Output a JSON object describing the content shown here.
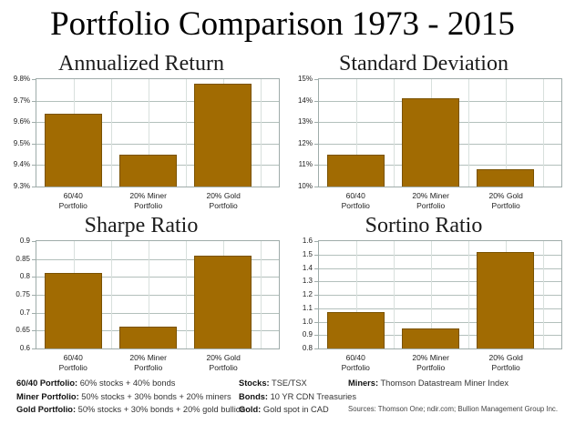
{
  "page_title": "Portfolio Comparison 1973 - 2015",
  "colors": {
    "bar_fill": "#A16B02",
    "bar_border": "#7A5200",
    "plot_border": "#9FACAA",
    "hgrid": "#B3C0BC",
    "vgrid": "#D8E0DD"
  },
  "chart_data": [
    {
      "type": "bar",
      "title": "Annualized Return",
      "categories": [
        "60/40\nPortfolio",
        "20% Miner\nPortfolio",
        "20% Gold\nPortfolio"
      ],
      "values": [
        9.64,
        9.45,
        9.78
      ],
      "ylim": [
        9.3,
        9.8
      ],
      "yticks": [
        9.3,
        9.4,
        9.5,
        9.6,
        9.7,
        9.8
      ],
      "ytick_labels": [
        "9.3%",
        "9.4%",
        "9.5%",
        "9.6%",
        "9.7%",
        "9.8%"
      ],
      "grid": true,
      "legend": false
    },
    {
      "type": "bar",
      "title": "Standard Deviation",
      "categories": [
        "60/40\nPortfolio",
        "20% Miner\nPortfolio",
        "20% Gold\nPortfolio"
      ],
      "values": [
        11.5,
        14.1,
        10.8
      ],
      "ylim": [
        10,
        15
      ],
      "yticks": [
        10,
        11,
        12,
        13,
        14,
        15
      ],
      "ytick_labels": [
        "10%",
        "11%",
        "12%",
        "13%",
        "14%",
        "15%"
      ],
      "grid": true,
      "legend": false
    },
    {
      "type": "bar",
      "title": "Sharpe Ratio",
      "categories": [
        "60/40\nPortfolio",
        "20% Miner\nPortfolio",
        "20% Gold\nPortfolio"
      ],
      "values": [
        0.81,
        0.66,
        0.86
      ],
      "ylim": [
        0.6,
        0.9
      ],
      "yticks": [
        0.6,
        0.65,
        0.7,
        0.75,
        0.8,
        0.85,
        0.9
      ],
      "ytick_labels": [
        "0.6",
        "0.65",
        "0.7",
        "0.75",
        "0.8",
        "0.85",
        "0.9"
      ],
      "grid": true,
      "legend": false
    },
    {
      "type": "bar",
      "title": "Sortino Ratio",
      "categories": [
        "60/40\nPortfolio",
        "20% Miner\nPortfolio",
        "20% Gold\nPortfolio"
      ],
      "values": [
        1.07,
        0.95,
        1.52
      ],
      "ylim": [
        0.8,
        1.6
      ],
      "yticks": [
        0.8,
        0.9,
        1.0,
        1.1,
        1.2,
        1.3,
        1.4,
        1.5,
        1.6
      ],
      "ytick_labels": [
        "0.8",
        "0.9",
        "1.0",
        "1.1",
        "1.2",
        "1.3",
        "1.4",
        "1.5",
        "1.6"
      ],
      "grid": true,
      "legend": false
    }
  ],
  "footer": {
    "col1": [
      {
        "label": "60/40 Portfolio:",
        "text": " 60% stocks + 40% bonds"
      },
      {
        "label": "Miner Portfolio:",
        "text": " 50% stocks + 30% bonds + 20% miners"
      },
      {
        "label": "Gold Portfolio:",
        "text": " 50% stocks + 30% bonds + 20% gold bullion"
      }
    ],
    "col2": [
      {
        "label": "Stocks:",
        "text": " TSE/TSX"
      },
      {
        "label": "Bonds:",
        "text": " 10 YR CDN Treasuries"
      },
      {
        "label": "Gold:",
        "text": " Gold spot in CAD"
      }
    ],
    "col3": [
      {
        "label": "Miners:",
        "text": " Thomson Datastream Miner Index"
      }
    ],
    "sources": "Sources: Thomson One; ndir.com; Bullion Management Group Inc."
  }
}
